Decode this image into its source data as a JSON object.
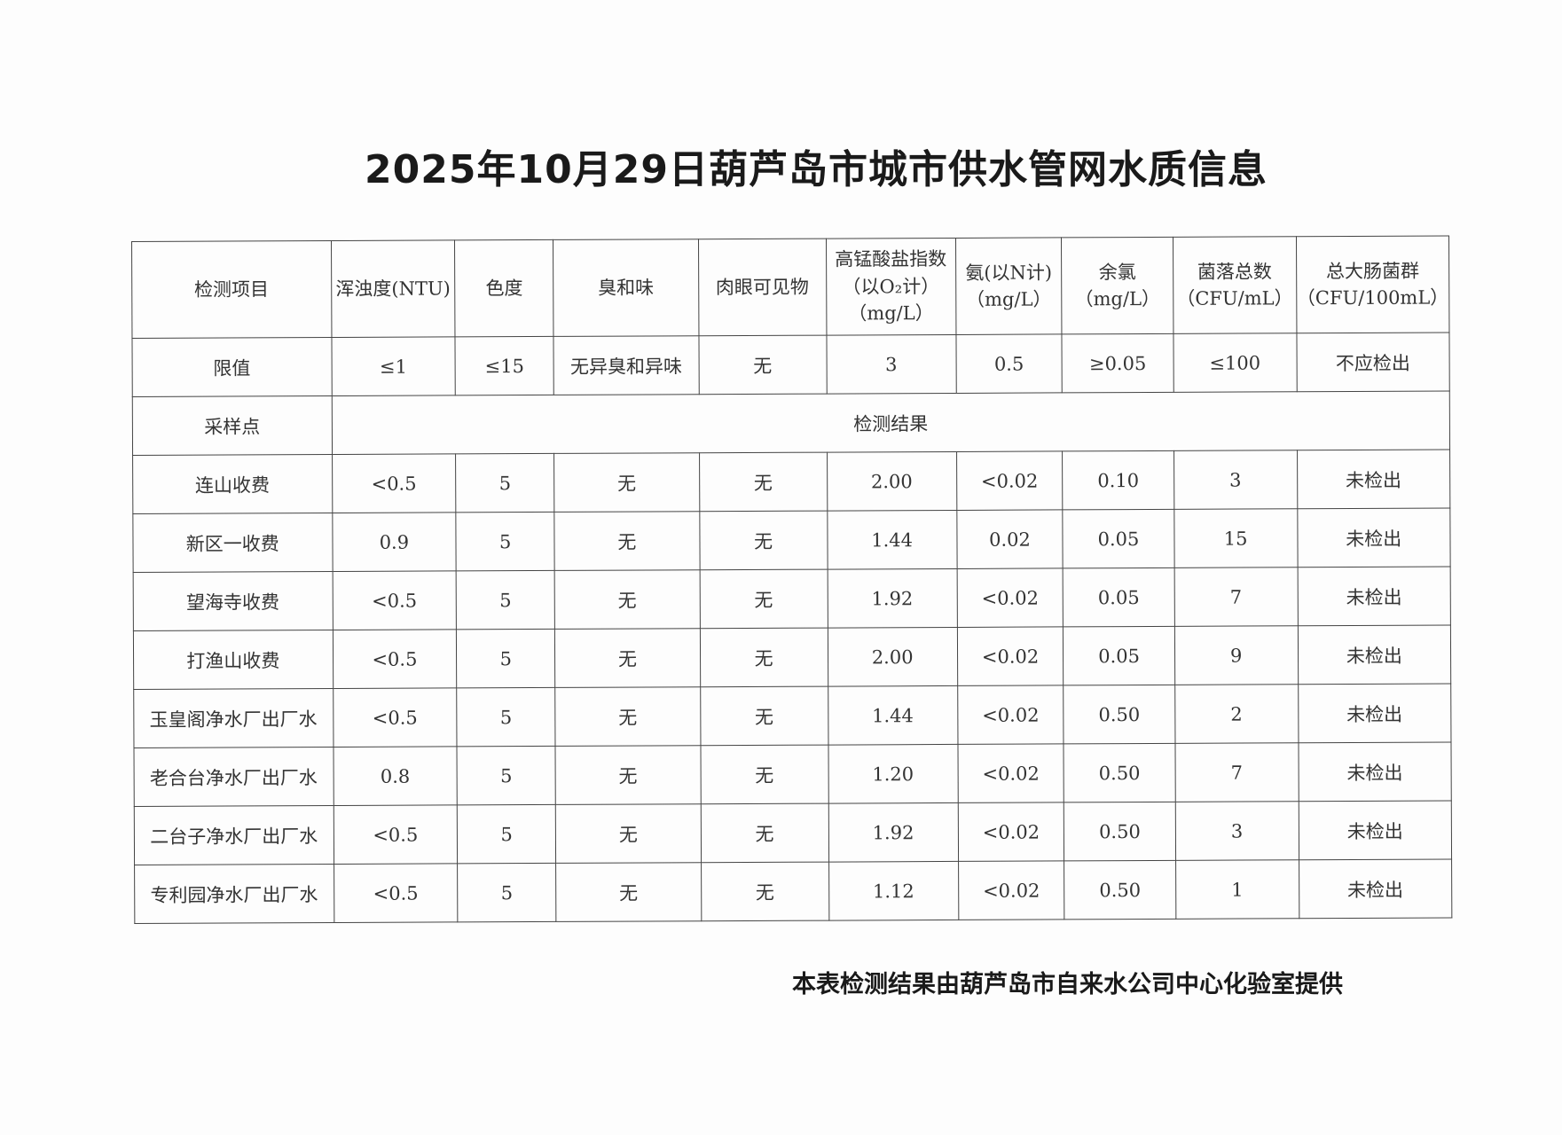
{
  "title": "2025年10月29日葫芦岛市城市供水管网水质信息",
  "headers": [
    "检测项目",
    "浑浊度(NTU)",
    "色度",
    "臭和味",
    "肉眼可见物",
    "高锰酸盐指数（以O₂计）（mg/L）",
    "氨(以N计)（mg/L）",
    "余氯（mg/L）",
    "菌落总数（CFU/mL）",
    "总大肠菌群（CFU/100mL）"
  ],
  "header_lines": [
    [
      "检测项目"
    ],
    [
      "浑浊度(NTU)"
    ],
    [
      "色度"
    ],
    [
      "臭和味"
    ],
    [
      "肉眼可见物"
    ],
    [
      "高锰酸盐指数",
      "（以O₂计）",
      "（mg/L）"
    ],
    [
      "氨(以N计)",
      "（mg/L）"
    ],
    [
      "余氯",
      "（mg/L）"
    ],
    [
      "菌落总数",
      "（CFU/mL）"
    ],
    [
      "总大肠菌群",
      "（CFU/100mL）"
    ]
  ],
  "limits": [
    "限值",
    "≤1",
    "≤15",
    "无异臭和异味",
    "无",
    "3",
    "0.5",
    "≥0.05",
    "≤100",
    "不应检出"
  ],
  "sample_label": "采样点",
  "results_label": "检测结果",
  "rows": [
    [
      "连山收费",
      "<0.5",
      "5",
      "无",
      "无",
      "2.00",
      "<0.02",
      "0.10",
      "3",
      "未检出"
    ],
    [
      "新区一收费",
      "0.9",
      "5",
      "无",
      "无",
      "1.44",
      "0.02",
      "0.05",
      "15",
      "未检出"
    ],
    [
      "望海寺收费",
      "<0.5",
      "5",
      "无",
      "无",
      "1.92",
      "<0.02",
      "0.05",
      "7",
      "未检出"
    ],
    [
      "打渔山收费",
      "<0.5",
      "5",
      "无",
      "无",
      "2.00",
      "<0.02",
      "0.05",
      "9",
      "未检出"
    ],
    [
      "玉皇阁净水厂出厂水",
      "<0.5",
      "5",
      "无",
      "无",
      "1.44",
      "<0.02",
      "0.50",
      "2",
      "未检出"
    ],
    [
      "老合台净水厂出厂水",
      "0.8",
      "5",
      "无",
      "无",
      "1.20",
      "<0.02",
      "0.50",
      "7",
      "未检出"
    ],
    [
      "二台子净水厂出厂水",
      "<0.5",
      "5",
      "无",
      "无",
      "1.92",
      "<0.02",
      "0.50",
      "3",
      "未检出"
    ],
    [
      "专利园净水厂出厂水",
      "<0.5",
      "5",
      "无",
      "无",
      "1.12",
      "<0.02",
      "0.50",
      "1",
      "未检出"
    ]
  ],
  "footer": "本表检测结果由葫芦岛市自来水公司中心化验室提供"
}
